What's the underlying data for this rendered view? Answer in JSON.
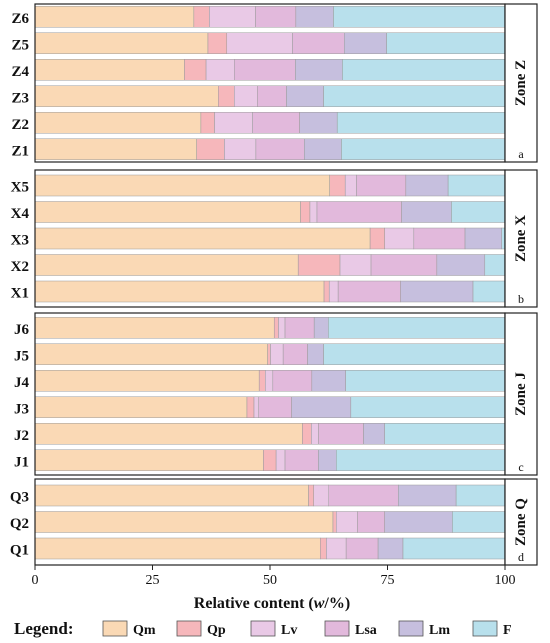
{
  "chart_data": {
    "type": "bar",
    "orientation": "horizontal",
    "stacked": true,
    "xlabel": "Relative content (w/%)",
    "xlim": [
      0,
      100
    ],
    "xticks": [
      "0",
      "25",
      "50",
      "75",
      "100"
    ],
    "grid": false,
    "legend_title": "Legend:",
    "legend_position": "bottom",
    "components": [
      {
        "name": "Qm",
        "color": "#fad9b5"
      },
      {
        "name": "Qp",
        "color": "#f6b7bb"
      },
      {
        "name": "Lv",
        "color": "#e9c9e6"
      },
      {
        "name": "Lsa",
        "color": "#e2b9dc"
      },
      {
        "name": "Lm",
        "color": "#c6bfde"
      },
      {
        "name": "F",
        "color": "#b8e0ec"
      }
    ],
    "panels": [
      {
        "zone": "Zone Z",
        "letter": "a",
        "samples": [
          {
            "label": "Z6",
            "values": [
              33.8,
              3.3,
              9.8,
              8.6,
              8.0,
              36.5
            ]
          },
          {
            "label": "Z5",
            "values": [
              36.8,
              4.0,
              14.0,
              11.0,
              9.0,
              25.2
            ]
          },
          {
            "label": "Z4",
            "values": [
              31.8,
              4.6,
              6.0,
              13.0,
              10.0,
              34.6
            ]
          },
          {
            "label": "Z3",
            "values": [
              39.0,
              3.4,
              4.9,
              6.2,
              7.9,
              38.6
            ]
          },
          {
            "label": "Z2",
            "values": [
              35.3,
              2.9,
              8.1,
              10.0,
              8.0,
              35.7
            ]
          },
          {
            "label": "Z1",
            "values": [
              34.4,
              5.9,
              6.7,
              10.3,
              7.9,
              34.8
            ]
          }
        ]
      },
      {
        "zone": "Zone X",
        "letter": "b",
        "samples": [
          {
            "label": "X5",
            "values": [
              62.7,
              3.3,
              2.4,
              10.5,
              9.0,
              12.1
            ]
          },
          {
            "label": "X4",
            "values": [
              56.5,
              2.0,
              1.5,
              18.0,
              10.6,
              11.4
            ]
          },
          {
            "label": "X3",
            "values": [
              71.3,
              3.1,
              6.2,
              10.9,
              7.8,
              0.7
            ]
          },
          {
            "label": "X2",
            "values": [
              56.0,
              8.9,
              6.6,
              14.0,
              10.2,
              4.3
            ]
          },
          {
            "label": "X1",
            "values": [
              61.5,
              1.1,
              1.9,
              13.3,
              15.4,
              6.8
            ]
          }
        ]
      },
      {
        "zone": "Zone J",
        "letter": "c",
        "samples": [
          {
            "label": "J6",
            "values": [
              50.9,
              0.9,
              1.4,
              6.2,
              3.0,
              37.6
            ]
          },
          {
            "label": "J5",
            "values": [
              49.5,
              0.6,
              2.7,
              5.2,
              3.4,
              38.6
            ]
          },
          {
            "label": "J4",
            "values": [
              47.7,
              1.3,
              1.6,
              8.3,
              7.2,
              33.9
            ]
          },
          {
            "label": "J3",
            "values": [
              45.1,
              1.5,
              1.0,
              7.0,
              12.6,
              32.8
            ]
          },
          {
            "label": "J2",
            "values": [
              56.9,
              1.9,
              1.5,
              9.6,
              4.5,
              25.6
            ]
          },
          {
            "label": "J1",
            "values": [
              48.6,
              2.7,
              1.9,
              7.1,
              3.8,
              35.9
            ]
          }
        ]
      },
      {
        "zone": "Zone Q",
        "letter": "d",
        "samples": [
          {
            "label": "Q3",
            "values": [
              58.2,
              1.1,
              3.2,
              14.8,
              12.3,
              10.4
            ]
          },
          {
            "label": "Q2",
            "values": [
              63.4,
              0.7,
              4.5,
              5.8,
              14.4,
              11.2
            ]
          },
          {
            "label": "Q1",
            "values": [
              60.7,
              1.3,
              4.2,
              6.8,
              5.3,
              21.7
            ]
          }
        ]
      }
    ]
  }
}
